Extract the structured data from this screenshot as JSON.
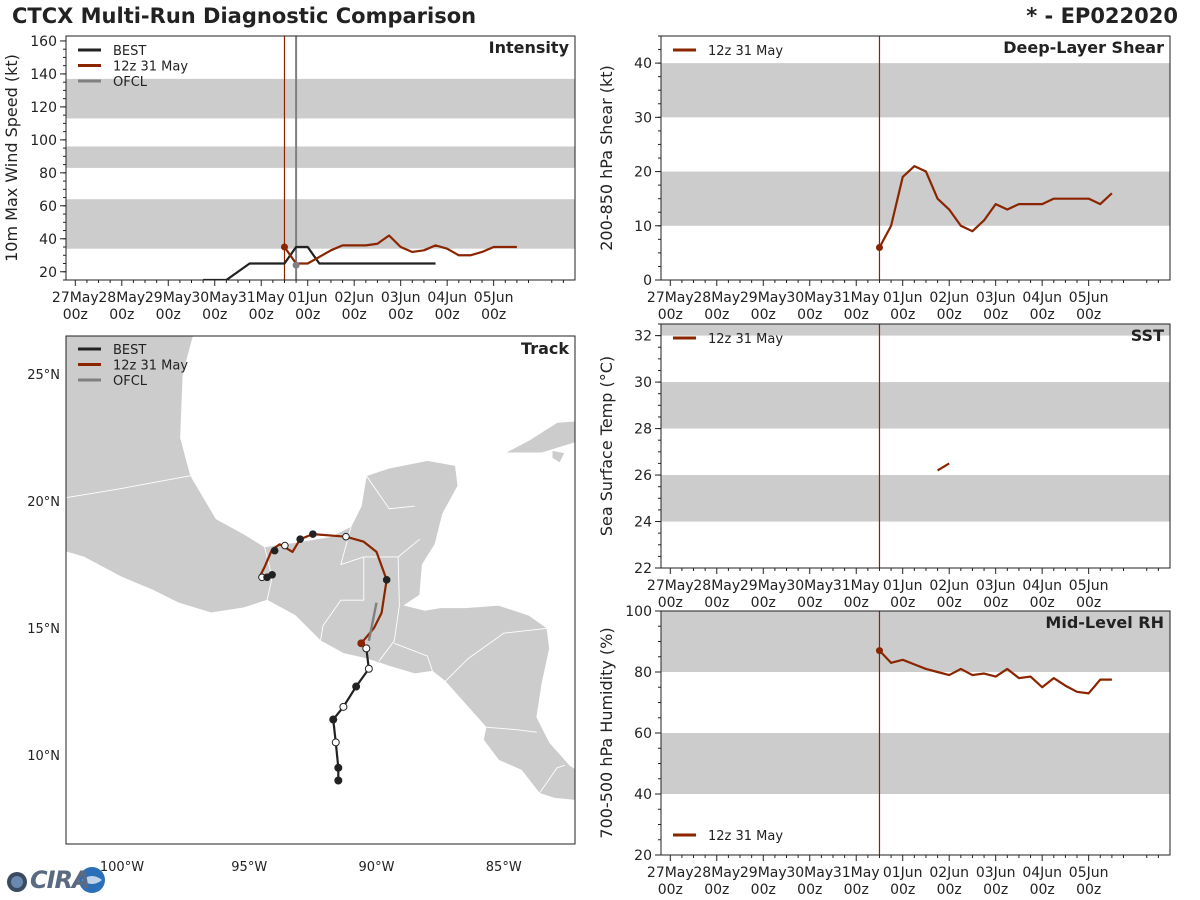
{
  "header": {
    "title": "CTCX Multi-Run Diagnostic Comparison",
    "storm_id": "* - EP022020"
  },
  "logo": {
    "text": "CIRA"
  },
  "colors": {
    "best": "#222222",
    "run": "#8b2500",
    "ofcl": "#808080",
    "shade": "#cccccc",
    "land": "#cccccc"
  },
  "time_axis": {
    "ticks": [
      [
        "27May",
        "00z"
      ],
      [
        "28May",
        "00z"
      ],
      [
        "29May",
        "00z"
      ],
      [
        "30May",
        "00z"
      ],
      [
        "31May",
        "00z"
      ],
      [
        "01Jun",
        "00z"
      ],
      [
        "02Jun",
        "00z"
      ],
      [
        "03Jun",
        "00z"
      ],
      [
        "04Jun",
        "00z"
      ],
      [
        "05Jun",
        "00z"
      ]
    ],
    "range_days": [
      -0.2,
      10.75
    ],
    "init_day": 4.5
  },
  "chart_data": [
    {
      "id": "intensity",
      "type": "line",
      "title": "Intensity",
      "ylabel": "10m Max Wind Speed (kt)",
      "ylim": [
        15,
        163
      ],
      "yticks": [
        20,
        40,
        60,
        80,
        100,
        120,
        140,
        160
      ],
      "bands": [
        [
          34,
          64
        ],
        [
          83,
          96
        ],
        [
          113,
          137
        ]
      ],
      "legend": [
        "BEST",
        "12z 31 May",
        "OFCL"
      ],
      "ofcl_day": 4.75,
      "series": [
        {
          "name": "BEST",
          "kind": "best",
          "x": [
            2.75,
            3.25,
            3.75,
            4.0,
            4.25,
            4.5,
            4.75,
            5.0,
            5.25,
            5.5,
            5.75,
            6.0,
            6.25,
            6.5,
            6.75,
            7.0,
            7.25,
            7.5,
            7.75
          ],
          "y": [
            15,
            15,
            25,
            25,
            25,
            25,
            35,
            35,
            25,
            25,
            25,
            25,
            25,
            25,
            25,
            25,
            25,
            25,
            25
          ]
        },
        {
          "name": "12z 31 May",
          "kind": "run",
          "x": [
            4.5,
            4.75,
            5.0,
            5.25,
            5.5,
            5.75,
            6.0,
            6.25,
            6.5,
            6.75,
            7.0,
            7.25,
            7.5,
            7.75,
            8.0,
            8.25,
            8.5,
            8.75,
            9.0,
            9.25,
            9.5
          ],
          "y": [
            35,
            25,
            25,
            29,
            33,
            36,
            36,
            36,
            37,
            42,
            35,
            32,
            33,
            36,
            34,
            30,
            30,
            32,
            35,
            35,
            35
          ]
        },
        {
          "name": "OFCL",
          "kind": "ofcl",
          "x": [
            4.75
          ],
          "y": [
            24
          ]
        }
      ]
    },
    {
      "id": "shear",
      "type": "line",
      "title": "Deep-Layer Shear",
      "ylabel": "200-850 hPa Shear (kt)",
      "ylim": [
        0,
        45
      ],
      "yticks": [
        0,
        10,
        20,
        30,
        40
      ],
      "bands": [
        [
          10,
          20
        ],
        [
          30,
          40
        ]
      ],
      "legend": [
        "12z 31 May"
      ],
      "series": [
        {
          "name": "12z 31 May",
          "kind": "run",
          "x": [
            4.5,
            4.75,
            5.0,
            5.25,
            5.5,
            5.75,
            6.0,
            6.25,
            6.5,
            6.75,
            7.0,
            7.25,
            7.5,
            7.75,
            8.0,
            8.25,
            8.5,
            8.75,
            9.0,
            9.25,
            9.5
          ],
          "y": [
            6,
            10,
            19,
            21,
            20,
            15,
            13,
            10,
            9,
            11,
            14,
            13,
            14,
            14,
            14,
            15,
            15,
            15,
            15,
            14,
            16
          ]
        }
      ]
    },
    {
      "id": "sst",
      "type": "line",
      "title": "SST",
      "ylabel": "Sea Surface Temp (°C)",
      "ylim": [
        22,
        32.5
      ],
      "yticks": [
        22,
        24,
        26,
        28,
        30,
        32
      ],
      "bands": [
        [
          24,
          26
        ],
        [
          28,
          30
        ],
        [
          32,
          32.5
        ]
      ],
      "legend": [
        "12z 31 May"
      ],
      "series": [
        {
          "name": "12z 31 May",
          "kind": "run",
          "x": [
            5.75,
            6.0
          ],
          "y": [
            26.2,
            26.5
          ]
        }
      ]
    },
    {
      "id": "rh",
      "type": "line",
      "title": "Mid-Level RH",
      "ylabel": "700-500 hPa Humidity (%)",
      "ylim": [
        20,
        100
      ],
      "yticks": [
        20,
        40,
        60,
        80,
        100
      ],
      "bands": [
        [
          40,
          60
        ],
        [
          80,
          100
        ]
      ],
      "legend": [
        "12z 31 May"
      ],
      "series": [
        {
          "name": "12z 31 May",
          "kind": "run",
          "x": [
            4.5,
            4.75,
            5.0,
            5.25,
            5.5,
            5.75,
            6.0,
            6.25,
            6.5,
            6.75,
            7.0,
            7.25,
            7.5,
            7.75,
            8.0,
            8.25,
            8.5,
            8.75,
            9.0,
            9.25,
            9.5
          ],
          "y": [
            87,
            83,
            84,
            82.5,
            81,
            80,
            79,
            81,
            79,
            79.5,
            78.5,
            81,
            78,
            78.5,
            75,
            78,
            75.5,
            73.5,
            73,
            77.5,
            77.5
          ]
        }
      ]
    },
    {
      "id": "track",
      "type": "scatter",
      "title": "Track",
      "xlabel_ticks": [
        "100°W",
        "95°W",
        "90°W",
        "85°W"
      ],
      "x_ticks_lon": [
        -100,
        -95,
        -90,
        -85
      ],
      "ylabel_ticks": [
        "10°N",
        "15°N",
        "20°N",
        "25°N"
      ],
      "y_ticks_lat": [
        10,
        15,
        20,
        25
      ],
      "lon_range": [
        -102.2,
        -82.2
      ],
      "lat_range": [
        6.5,
        26.5
      ],
      "legend": [
        "BEST",
        "12z 31 May",
        "OFCL"
      ],
      "best": {
        "lon": [
          -91.5,
          -91.5,
          -91.6,
          -91.7,
          -91.3,
          -90.8,
          -90.3,
          -90.4
        ],
        "lat": [
          9.0,
          9.5,
          10.5,
          11.4,
          11.9,
          12.7,
          13.4,
          14.2
        ],
        "filled": [
          true,
          true,
          false,
          true,
          false,
          true,
          false,
          false
        ]
      },
      "run": {
        "lon": [
          -90.6,
          -90.1,
          -89.8,
          -89.6,
          -90.0,
          -90.5,
          -91.2,
          -92.5,
          -93.0,
          -93.3,
          -93.8,
          -94.1,
          -94.4,
          -94.6,
          -94.3
        ],
        "lat": [
          14.4,
          15.0,
          15.6,
          16.9,
          18.0,
          18.4,
          18.6,
          18.7,
          18.5,
          18.0,
          18.3,
          18.1,
          17.4,
          17.0,
          17.1
        ],
        "marks": [
          {
            "lon": -90.6,
            "lat": 14.4,
            "filled": true
          },
          {
            "lon": -89.6,
            "lat": 16.9,
            "filled": true
          },
          {
            "lon": -91.2,
            "lat": 18.6,
            "filled": false
          },
          {
            "lon": -92.5,
            "lat": 18.7,
            "filled": true
          },
          {
            "lon": -93.0,
            "lat": 18.5,
            "filled": true
          },
          {
            "lon": -93.6,
            "lat": 18.25,
            "filled": false
          },
          {
            "lon": -94.0,
            "lat": 18.05,
            "filled": true
          },
          {
            "lon": -94.5,
            "lat": 17.0,
            "filled": false
          },
          {
            "lon": -94.3,
            "lat": 17.0,
            "filled": true
          },
          {
            "lon": -94.1,
            "lat": 17.1,
            "filled": true
          }
        ]
      },
      "ofcl": {
        "lon": [
          -90.0,
          -90.2,
          -90.3
        ],
        "lat": [
          16.0,
          15.0,
          14.5
        ]
      }
    }
  ]
}
